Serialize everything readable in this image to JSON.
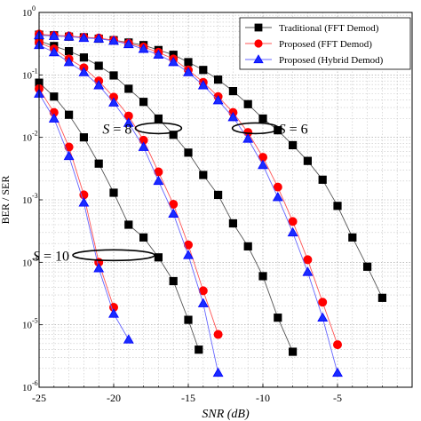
{
  "chart_data": {
    "type": "line",
    "xlabel": "SNR (dB)",
    "ylabel_visible_fragment": "BER / SER",
    "xlim": [
      -25,
      0
    ],
    "ylim": [
      1e-06,
      1
    ],
    "yscale": "log",
    "grid": true,
    "legend_position": "top-right",
    "x_ticks": [
      -25,
      -20,
      -15,
      -10,
      -5
    ],
    "x_tick_labels": [
      "-25",
      "-20",
      "-15",
      "-10",
      "-5"
    ],
    "y_ticks": [
      1e-06,
      1e-05,
      0.0001,
      0.001,
      0.01,
      0.1,
      1
    ],
    "y_tick_labels": [
      {
        "base": "10",
        "exp": "-6"
      },
      {
        "base": "10",
        "exp": "-5"
      },
      {
        "base": "10",
        "exp": "-4"
      },
      {
        "base": "10",
        "exp": "-3"
      },
      {
        "base": "10",
        "exp": "-2"
      },
      {
        "base": "10",
        "exp": "-1"
      },
      {
        "base": "10",
        "exp": "0"
      }
    ],
    "series": [
      {
        "name": "Traditional (FFT Demod)",
        "marker": "square",
        "color": "#000000",
        "fill": "#000000",
        "line_color": "#555555",
        "curves": [
          {
            "x": [
              -25,
              -24,
              -23,
              -22,
              -21,
              -20,
              -19,
              -18,
              -17,
              -16,
              -15,
              -14.3
            ],
            "y": [
              0.075,
              0.045,
              0.023,
              0.01,
              0.0038,
              0.0013,
              0.0004,
              0.00025,
              0.00012,
              5e-05,
              1.2e-05,
              4e-06
            ]
          },
          {
            "x": [
              -25,
              -24,
              -23,
              -22,
              -21,
              -20,
              -19,
              -18,
              -17,
              -16,
              -15,
              -14,
              -13,
              -12,
              -11,
              -10,
              -9,
              -8
            ],
            "y": [
              0.35,
              0.29,
              0.24,
              0.19,
              0.14,
              0.098,
              0.06,
              0.037,
              0.02,
              0.011,
              0.0057,
              0.0025,
              0.0012,
              0.00042,
              0.00018,
              6e-05,
              1.3e-05,
              3.7e-06
            ]
          },
          {
            "x": [
              -25,
              -24,
              -23,
              -22,
              -21,
              -20,
              -19,
              -18,
              -17,
              -16,
              -15,
              -14,
              -13,
              -12,
              -11,
              -10,
              -9,
              -8,
              -7,
              -6,
              -5,
              -4,
              -3,
              -2
            ],
            "y": [
              0.44,
              0.43,
              0.41,
              0.4,
              0.38,
              0.36,
              0.33,
              0.3,
              0.25,
              0.21,
              0.16,
              0.12,
              0.084,
              0.055,
              0.034,
              0.02,
              0.013,
              0.0075,
              0.0042,
              0.0021,
              0.0008,
              0.00025,
              8.5e-05,
              2.7e-05
            ]
          }
        ]
      },
      {
        "name": "Proposed (FFT Demod)",
        "marker": "circle",
        "color": "#ff0000",
        "fill": "#ff0000",
        "line_color": "#ff5555",
        "curves": [
          {
            "x": [
              -25,
              -24,
              -23,
              -22,
              -21,
              -20
            ],
            "y": [
              0.06,
              0.025,
              0.007,
              0.0012,
              0.0001,
              1.9e-05
            ]
          },
          {
            "x": [
              -25,
              -24,
              -23,
              -22,
              -21,
              -20,
              -19,
              -18,
              -17,
              -16,
              -15,
              -14,
              -13
            ],
            "y": [
              0.33,
              0.26,
              0.18,
              0.13,
              0.08,
              0.044,
              0.022,
              0.009,
              0.0028,
              0.00085,
              0.00019,
              3.5e-05,
              7e-06
            ]
          },
          {
            "x": [
              -25,
              -24,
              -23,
              -22,
              -21,
              -20,
              -19,
              -18,
              -17,
              -16,
              -15,
              -14,
              -13,
              -12,
              -11,
              -10,
              -9,
              -8,
              -7,
              -6,
              -5
            ],
            "y": [
              0.45,
              0.43,
              0.42,
              0.4,
              0.39,
              0.36,
              0.32,
              0.28,
              0.23,
              0.18,
              0.12,
              0.076,
              0.045,
              0.025,
              0.012,
              0.0048,
              0.0016,
              0.00045,
              0.00011,
              2.3e-05,
              4.8e-06
            ]
          }
        ]
      },
      {
        "name": "Proposed (Hybrid Demod)",
        "marker": "triangle",
        "color": "#0000ff",
        "fill": "#1a2cff",
        "line_color": "#6666ff",
        "curves": [
          {
            "x": [
              -25,
              -24,
              -23,
              -22,
              -21,
              -20,
              -19
            ],
            "y": [
              0.05,
              0.02,
              0.005,
              0.0009,
              8e-05,
              1.5e-05,
              5.8e-06
            ]
          },
          {
            "x": [
              -25,
              -24,
              -23,
              -22,
              -21,
              -20,
              -19,
              -18,
              -17,
              -16,
              -15,
              -14,
              -13
            ],
            "y": [
              0.3,
              0.23,
              0.16,
              0.11,
              0.068,
              0.036,
              0.017,
              0.007,
              0.002,
              0.0006,
              0.00013,
              2.2e-05,
              1.7e-06
            ]
          },
          {
            "x": [
              -25,
              -24,
              -23,
              -22,
              -21,
              -20,
              -19,
              -18,
              -17,
              -16,
              -15,
              -14,
              -13,
              -12,
              -11,
              -10,
              -9,
              -8,
              -7,
              -6,
              -5
            ],
            "y": [
              0.43,
              0.42,
              0.41,
              0.39,
              0.38,
              0.35,
              0.31,
              0.26,
              0.21,
              0.16,
              0.11,
              0.068,
              0.039,
              0.021,
              0.0095,
              0.0036,
              0.0011,
              0.0003,
              7e-05,
              1.3e-05,
              1.7e-06
            ]
          }
        ]
      }
    ],
    "annotations": [
      {
        "text": "S = 8",
        "x": -17,
        "y": 0.014
      },
      {
        "text": "S = 6",
        "x": -10.5,
        "y": 0.014
      },
      {
        "text": "S = 10",
        "x": -20,
        "y": 0.00013
      }
    ]
  }
}
